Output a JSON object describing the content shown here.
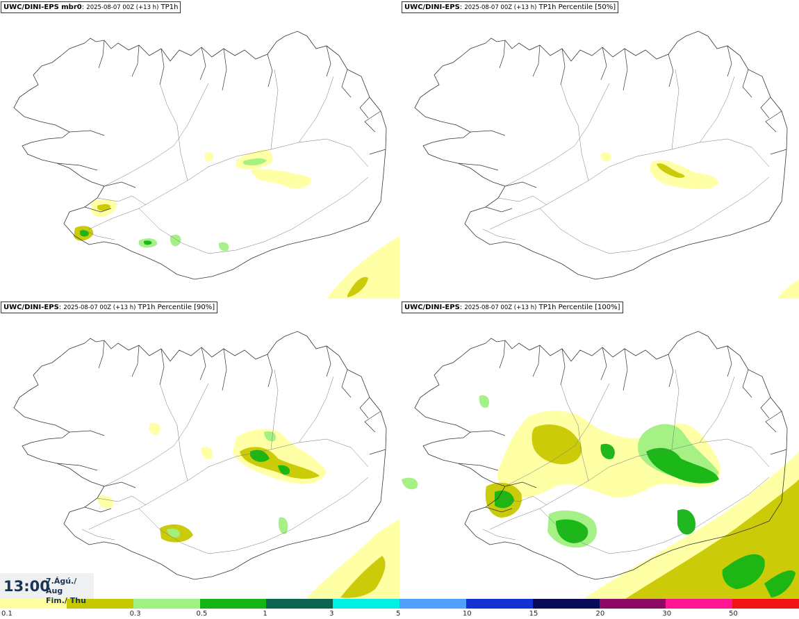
{
  "panels": [
    {
      "model": "UWC/DINI-EPS mbr0",
      "run": "2025-08-07 00Z (+13 h)",
      "field": "TP1h"
    },
    {
      "model": "UWC/DINI-EPS",
      "run": "2025-08-07 00Z (+13 h)",
      "field": "TP1h Percentile [50%]"
    },
    {
      "model": "UWC/DINI-EPS",
      "run": "2025-08-07 00Z (+13 h)",
      "field": "TP1h Percentile [90%]"
    },
    {
      "model": "UWC/DINI-EPS",
      "run": "2025-08-07 00Z (+13 h)",
      "field": "TP1h Percentile [100%]"
    }
  ],
  "valid_time": {
    "time": "13:00",
    "date_line1": "7.Ágú./ Aug",
    "date_line2": "Fim./ Thu"
  },
  "legend": {
    "colors": [
      "#ffffa0",
      "#c8c800",
      "#a0f082",
      "#14b414",
      "#0a6450",
      "#00f0e6",
      "#50a0ff",
      "#1432d2",
      "#0a0a5a",
      "#8c0a64",
      "#ff1493",
      "#f01414"
    ],
    "labels": [
      "0.1",
      "0.3",
      "0.5",
      "1",
      "3",
      "5",
      "10",
      "15",
      "20",
      "30",
      "50"
    ]
  }
}
